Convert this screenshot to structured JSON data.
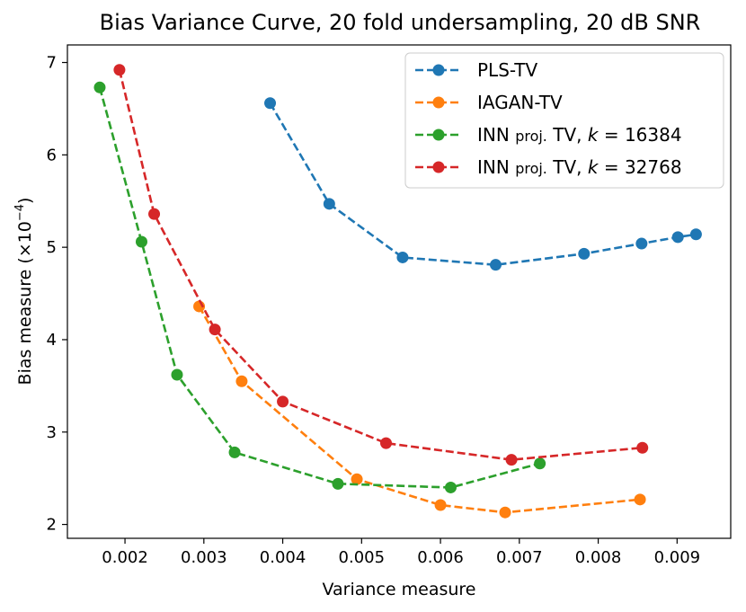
{
  "chart_data": {
    "type": "line",
    "title": "Bias Variance Curve, 20 fold undersampling, 20 dB SNR",
    "xlabel": "Variance measure",
    "ylabel": "Bias measure (×10",
    "ylabel_exp": "−4",
    "ylabel_close": ")",
    "xlim": [
      0.00127,
      0.00968
    ],
    "ylim": [
      1.85,
      7.19
    ],
    "xticks": [
      0.002,
      0.003,
      0.004,
      0.005,
      0.006,
      0.007,
      0.008,
      0.009
    ],
    "xtick_labels": [
      "0.002",
      "0.003",
      "0.004",
      "0.005",
      "0.006",
      "0.007",
      "0.008",
      "0.009"
    ],
    "yticks": [
      2,
      3,
      4,
      5,
      6,
      7
    ],
    "ytick_labels": [
      "2",
      "3",
      "4",
      "5",
      "6",
      "7"
    ],
    "grid": false,
    "legend_position": "top-right",
    "series": [
      {
        "name": "PLS-TV",
        "legend_parts": [
          "PLS-TV"
        ],
        "color": "#1f77b4",
        "x": [
          0.00384,
          0.00459,
          0.00552,
          0.0067,
          0.00782,
          0.00855,
          0.00901,
          0.00924
        ],
        "y": [
          6.56,
          5.47,
          4.89,
          4.81,
          4.93,
          5.04,
          5.11,
          5.14
        ]
      },
      {
        "name": "IAGAN-TV",
        "legend_parts": [
          "IAGAN-TV"
        ],
        "color": "#ff7f0e",
        "x": [
          0.00294,
          0.00348,
          0.00494,
          0.006,
          0.00682,
          0.00853
        ],
        "y": [
          4.36,
          3.55,
          2.49,
          2.21,
          2.13,
          2.27
        ]
      },
      {
        "name": "INN proj. TV, k = 16384",
        "legend_parts": [
          "INN ",
          "proj.",
          " TV, ",
          "k",
          " = 16384"
        ],
        "color": "#2ca02c",
        "x": [
          0.00168,
          0.00221,
          0.00266,
          0.00339,
          0.0047,
          0.00613,
          0.00726
        ],
        "y": [
          6.73,
          5.06,
          3.62,
          2.78,
          2.44,
          2.4,
          2.66
        ]
      },
      {
        "name": "INN proj. TV, k = 32768",
        "legend_parts": [
          "INN ",
          "proj.",
          " TV, ",
          "k",
          " = 32768"
        ],
        "color": "#d62728",
        "x": [
          0.00193,
          0.00237,
          0.00314,
          0.004,
          0.00531,
          0.0069,
          0.00856
        ],
        "y": [
          6.92,
          5.36,
          4.11,
          3.33,
          2.88,
          2.7,
          2.83
        ]
      }
    ]
  }
}
